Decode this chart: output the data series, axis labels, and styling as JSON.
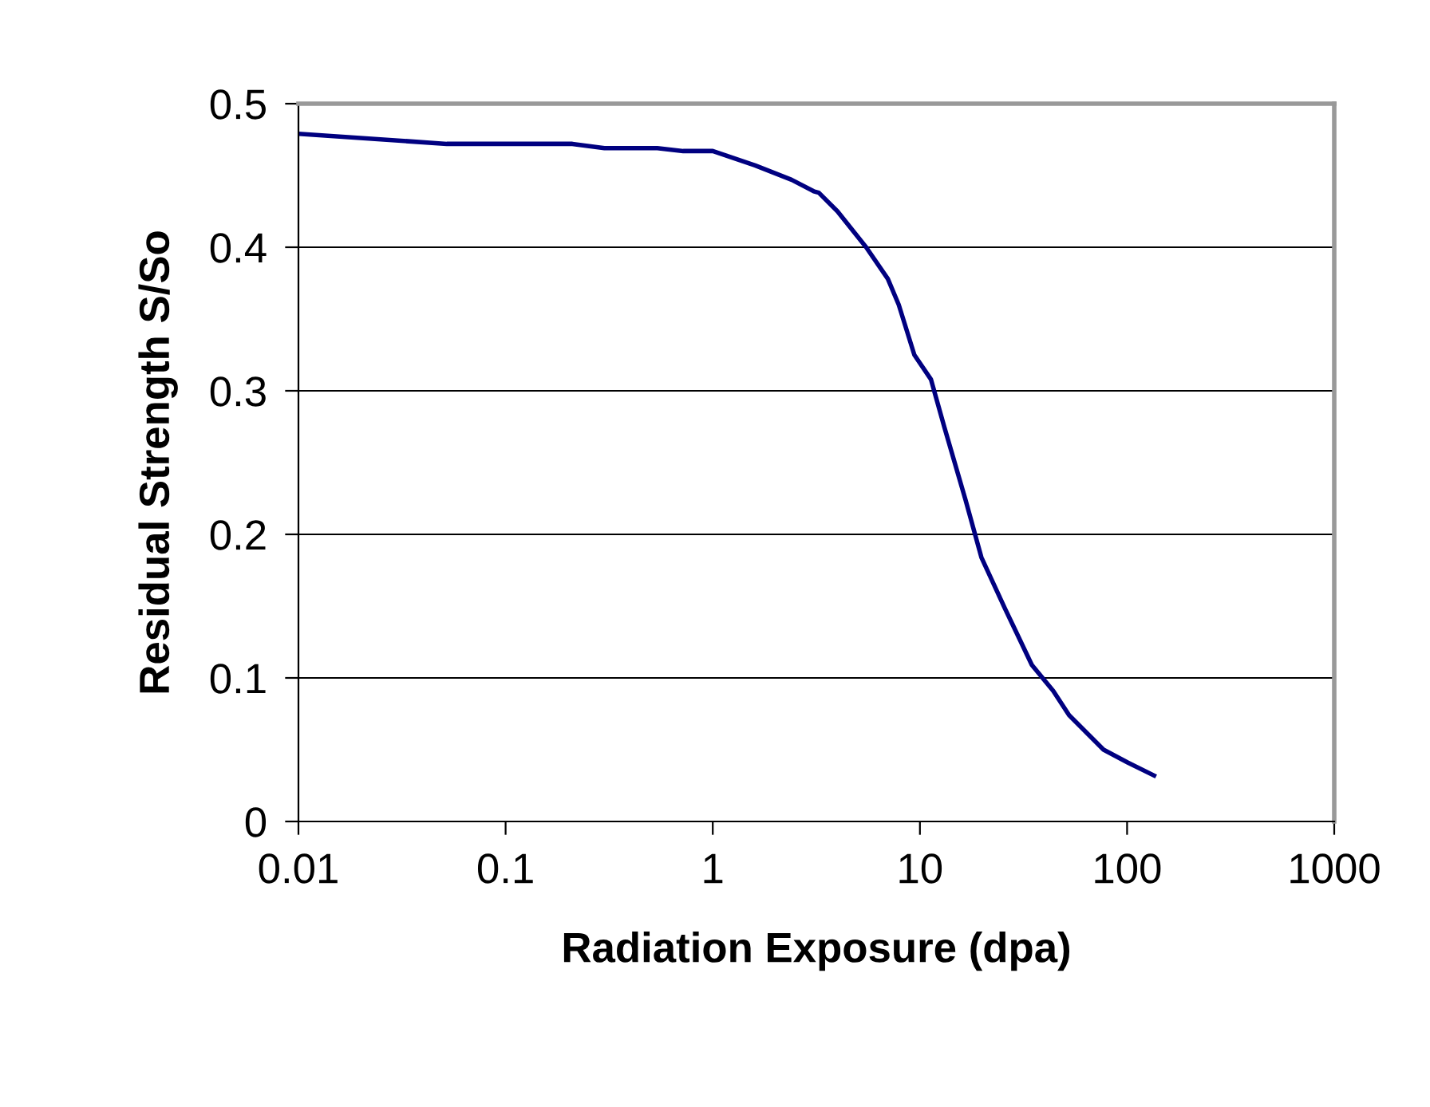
{
  "chart_data": {
    "type": "line",
    "xlabel": "Radiation Exposure (dpa)",
    "ylabel": "Residual Strength S/So",
    "log": "x",
    "xlim": [
      0.01,
      1000
    ],
    "xticks": [
      0.01,
      0.1,
      1,
      10,
      100,
      1000
    ],
    "ylim": [
      0,
      0.5
    ],
    "yticks": [
      0,
      0.1,
      0.2,
      0.3,
      0.4,
      0.5
    ],
    "grid": "y",
    "marker": "none",
    "line_style": "solid",
    "series": [
      {
        "color": "#000080",
        "x": [
          0.01,
          0.052,
          0.21,
          0.3,
          0.54,
          0.72,
          1.0,
          1.6,
          2.4,
          3.07,
          3.25,
          4.0,
          5.5,
          7.0,
          7.9,
          9.4,
          11.3,
          13.1,
          16.6,
          19.8,
          25.8,
          34.7,
          44,
          52.5,
          77,
          101,
          135
        ],
        "values": [
          0.479,
          0.472,
          0.472,
          0.469,
          0.469,
          0.467,
          0.467,
          0.457,
          0.447,
          0.439,
          0.438,
          0.425,
          0.4,
          0.378,
          0.36,
          0.325,
          0.308,
          0.275,
          0.224,
          0.184,
          0.148,
          0.109,
          0.091,
          0.074,
          0.05,
          0.041,
          0.032
        ]
      }
    ]
  }
}
